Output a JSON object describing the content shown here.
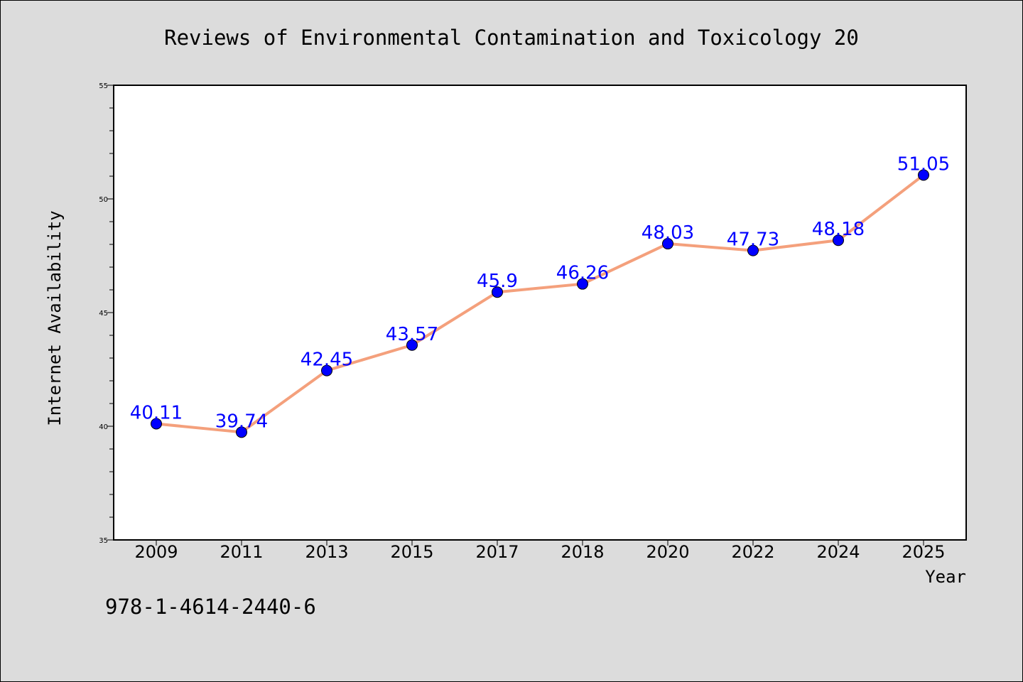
{
  "chart_data": {
    "type": "line",
    "title": "Reviews of Environmental Contamination and Toxicology 20",
    "xlabel": "Year",
    "ylabel": "Internet Availability",
    "categories": [
      "2009",
      "2011",
      "2013",
      "2015",
      "2017",
      "2018",
      "2020",
      "2022",
      "2024",
      "2025"
    ],
    "values": [
      40.11,
      39.74,
      42.45,
      43.57,
      45.9,
      46.26,
      48.03,
      47.73,
      48.18,
      51.05
    ],
    "data_labels": [
      "40.11",
      "39.74",
      "42.45",
      "43.57",
      "45.9",
      "46.26",
      "48.03",
      "47.73",
      "48.18",
      "51.05"
    ],
    "ylim": [
      35,
      55
    ],
    "yticks": [
      "35",
      "40",
      "45",
      "50",
      "55"
    ],
    "ytick_values": [
      35,
      40,
      45,
      50,
      55
    ],
    "y_minor_step": 1,
    "grid": false,
    "line_color": "#f4a07c",
    "marker_color": "#0000ff",
    "label_color": "#0000ff"
  },
  "footer": {
    "isbn": "978-1-4614-2440-6"
  }
}
